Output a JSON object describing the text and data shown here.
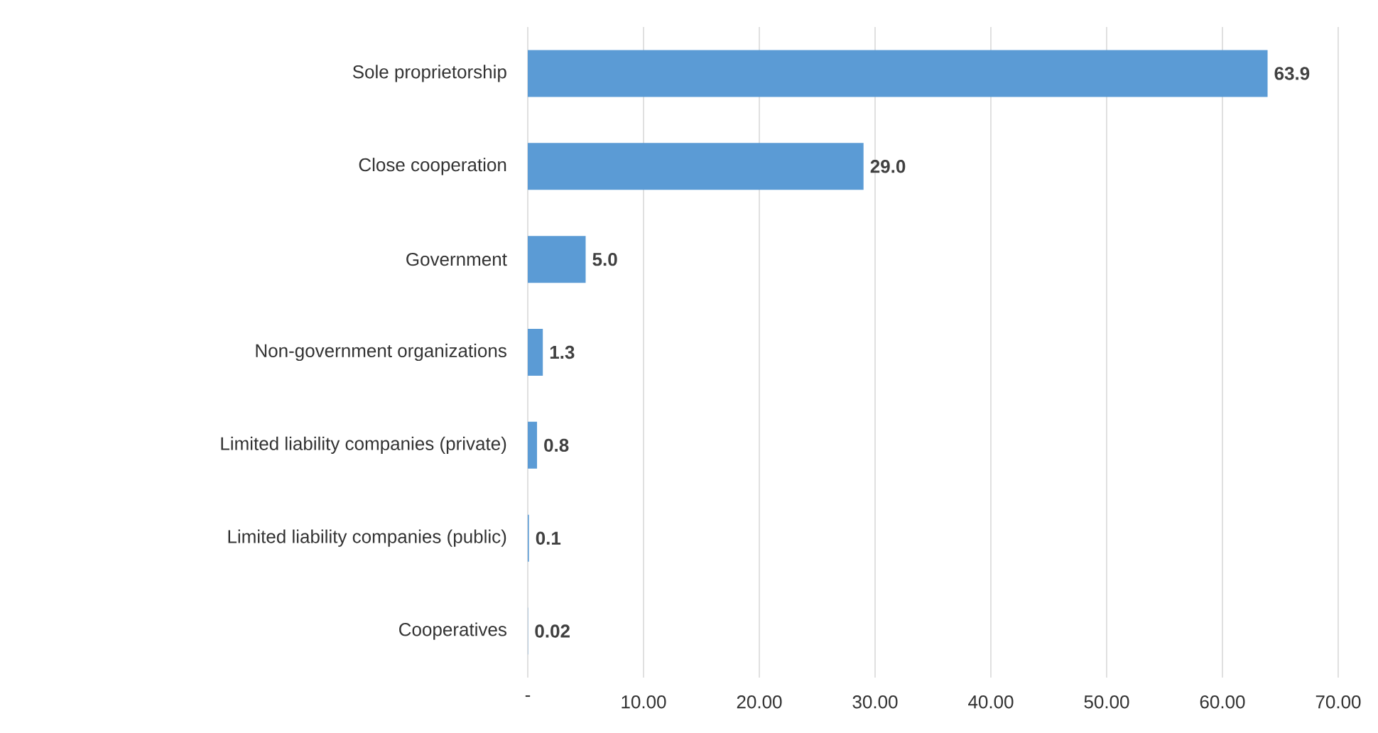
{
  "chart_data": {
    "type": "bar",
    "orientation": "horizontal",
    "categories": [
      "Sole proprietorship",
      "Close cooperation",
      "Government",
      "Non-government organizations",
      "Limited liability companies (private)",
      "Limited liability companies (public)",
      "Cooperatives"
    ],
    "values": [
      63.9,
      29.0,
      5.0,
      1.3,
      0.8,
      0.1,
      0.02
    ],
    "value_labels": [
      "63.9",
      "29.0",
      "5.0",
      "1.3",
      "0.8",
      "0.1",
      "0.02"
    ],
    "color": "#5b9bd5",
    "xlim": [
      0,
      70
    ],
    "xticks": [
      {
        "value": 0,
        "label": "-"
      },
      {
        "value": 10,
        "label": "10.00"
      },
      {
        "value": 20,
        "label": "20.00"
      },
      {
        "value": 30,
        "label": "30.00"
      },
      {
        "value": 40,
        "label": "40.00"
      },
      {
        "value": 50,
        "label": "50.00"
      },
      {
        "value": 60,
        "label": "60.00"
      },
      {
        "value": 70,
        "label": "70.00"
      }
    ],
    "grid": "x"
  }
}
